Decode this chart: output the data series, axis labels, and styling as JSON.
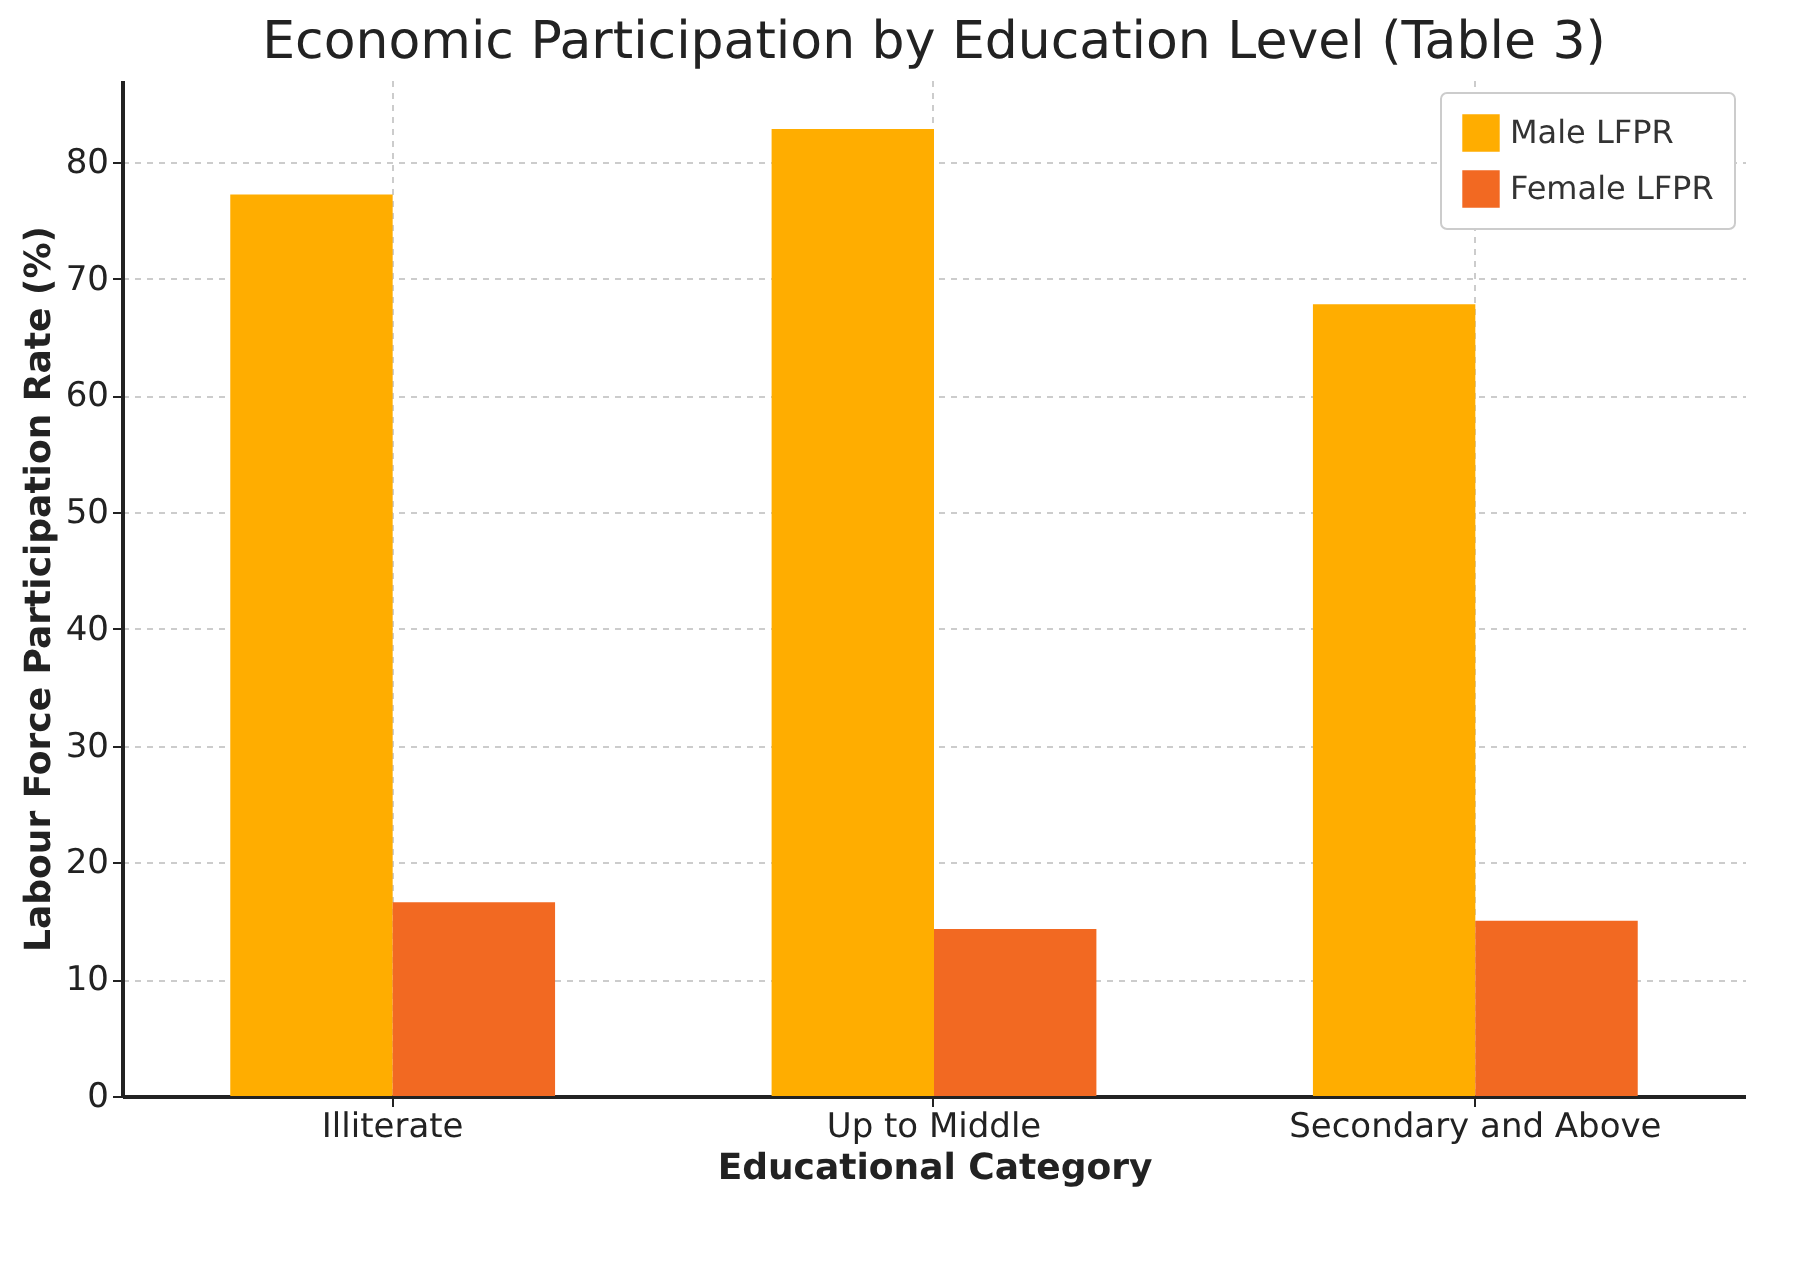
{
  "chart_data": {
    "type": "bar",
    "title": "Economic Participation by Education Level (Table 3)",
    "xlabel": "Educational Category",
    "ylabel": "Labour Force Participation Rate (%)",
    "categories": [
      "Illiterate",
      "Up to Middle",
      "Secondary and Above"
    ],
    "series": [
      {
        "name": "Male LFPR",
        "color": "#ffad00",
        "values": [
          77.2,
          82.8,
          67.8
        ]
      },
      {
        "name": "Female LFPR",
        "color": "#f26922",
        "values": [
          16.6,
          14.3,
          15.0
        ]
      }
    ],
    "ylim": [
      0,
      87
    ],
    "yticks": [
      0,
      10,
      20,
      30,
      40,
      50,
      60,
      70,
      80
    ],
    "grid": true,
    "legend": "top right"
  }
}
